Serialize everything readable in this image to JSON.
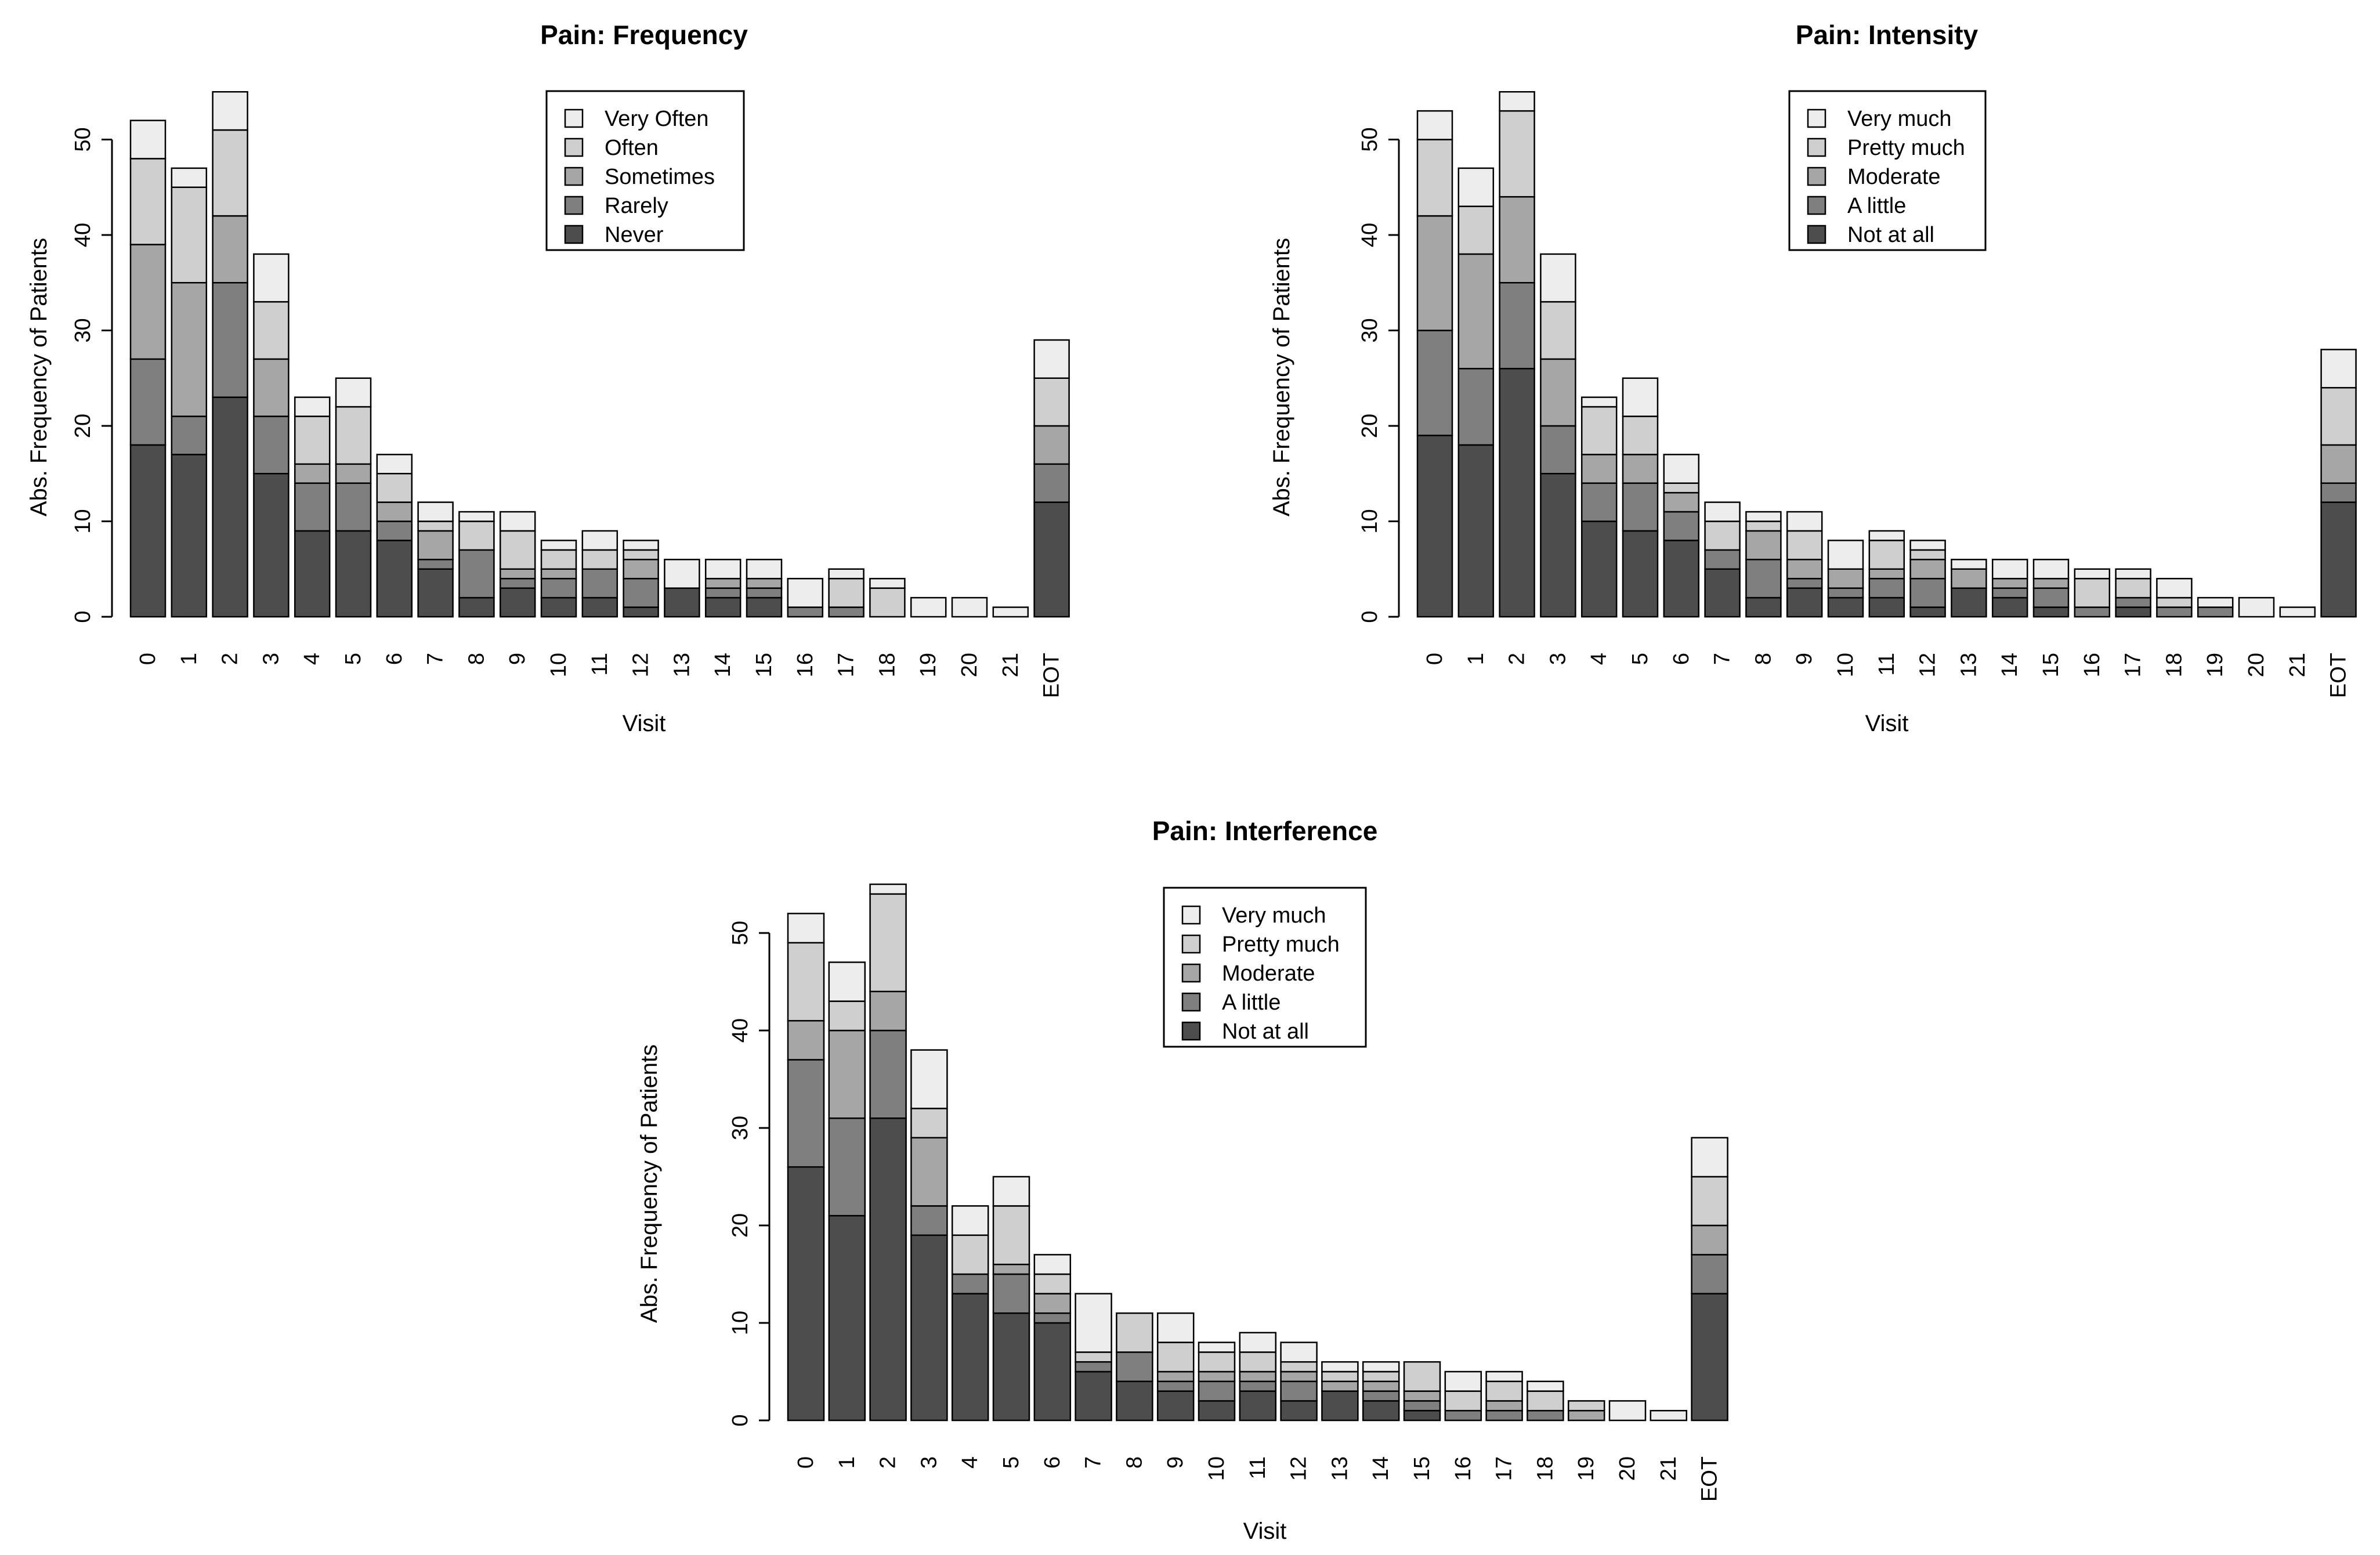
{
  "colors": {
    "level_1": "#4d4d4d",
    "level_2": "#7f7f7f",
    "level_3": "#a6a6a6",
    "level_4": "#cfcfcf",
    "level_5": "#ededed",
    "stroke": "#000000"
  },
  "chart_data": [
    {
      "type": "bar",
      "stacked": true,
      "title": "Pain: Frequency",
      "xlabel": "Visit",
      "ylabel": "Abs. Frequency of Patients",
      "ylim": [
        0,
        55
      ],
      "yticks": [
        0,
        10,
        20,
        30,
        40,
        50
      ],
      "legend_position": "top-center",
      "categories": [
        "0",
        "1",
        "2",
        "3",
        "4",
        "5",
        "6",
        "7",
        "8",
        "9",
        "10",
        "11",
        "12",
        "13",
        "14",
        "15",
        "16",
        "17",
        "18",
        "19",
        "20",
        "21",
        "EOT"
      ],
      "series": [
        {
          "name": "Never",
          "values": [
            18,
            17,
            23,
            15,
            9,
            9,
            8,
            5,
            2,
            3,
            2,
            2,
            1,
            3,
            2,
            2,
            0,
            0,
            0,
            0,
            0,
            0,
            12
          ]
        },
        {
          "name": "Rarely",
          "values": [
            9,
            4,
            12,
            6,
            5,
            5,
            2,
            1,
            5,
            1,
            2,
            3,
            3,
            0,
            1,
            1,
            1,
            1,
            0,
            0,
            0,
            0,
            4
          ]
        },
        {
          "name": "Sometimes",
          "values": [
            12,
            14,
            7,
            6,
            2,
            2,
            2,
            3,
            0,
            1,
            1,
            0,
            2,
            0,
            1,
            1,
            0,
            0,
            0,
            0,
            0,
            0,
            4
          ]
        },
        {
          "name": "Often",
          "values": [
            9,
            10,
            9,
            6,
            5,
            6,
            3,
            1,
            3,
            4,
            2,
            2,
            1,
            0,
            0,
            0,
            0,
            3,
            3,
            0,
            0,
            0,
            5
          ]
        },
        {
          "name": "Very Often",
          "values": [
            4,
            2,
            4,
            5,
            2,
            3,
            2,
            2,
            1,
            2,
            1,
            2,
            1,
            3,
            2,
            2,
            3,
            1,
            1,
            2,
            2,
            1,
            4
          ]
        }
      ]
    },
    {
      "type": "bar",
      "stacked": true,
      "title": "Pain: Intensity",
      "xlabel": "Visit",
      "ylabel": "Abs. Frequency of Patients",
      "ylim": [
        0,
        55
      ],
      "yticks": [
        0,
        10,
        20,
        30,
        40,
        50
      ],
      "legend_position": "top-center",
      "categories": [
        "0",
        "1",
        "2",
        "3",
        "4",
        "5",
        "6",
        "7",
        "8",
        "9",
        "10",
        "11",
        "12",
        "13",
        "14",
        "15",
        "16",
        "17",
        "18",
        "19",
        "20",
        "21",
        "EOT"
      ],
      "series": [
        {
          "name": "Not at all",
          "values": [
            19,
            18,
            26,
            15,
            10,
            9,
            8,
            5,
            2,
            3,
            2,
            2,
            1,
            3,
            2,
            1,
            0,
            1,
            0,
            0,
            0,
            0,
            12
          ]
        },
        {
          "name": "A little",
          "values": [
            11,
            8,
            9,
            5,
            4,
            5,
            3,
            2,
            4,
            1,
            1,
            2,
            3,
            0,
            1,
            2,
            1,
            1,
            1,
            1,
            0,
            0,
            2
          ]
        },
        {
          "name": "Moderate",
          "values": [
            12,
            12,
            9,
            7,
            3,
            3,
            2,
            0,
            3,
            2,
            2,
            1,
            2,
            2,
            1,
            1,
            0,
            0,
            0,
            0,
            0,
            0,
            4
          ]
        },
        {
          "name": "Pretty much",
          "values": [
            8,
            5,
            9,
            6,
            5,
            4,
            1,
            3,
            1,
            3,
            0,
            3,
            1,
            0,
            0,
            0,
            3,
            2,
            1,
            0,
            0,
            0,
            6
          ]
        },
        {
          "name": "Very much",
          "values": [
            3,
            4,
            2,
            5,
            1,
            4,
            3,
            2,
            1,
            2,
            3,
            1,
            1,
            1,
            2,
            2,
            1,
            1,
            2,
            1,
            2,
            1,
            4
          ]
        }
      ]
    },
    {
      "type": "bar",
      "stacked": true,
      "title": "Pain: Interference",
      "xlabel": "Visit",
      "ylabel": "Abs. Frequency of Patients",
      "ylim": [
        0,
        55
      ],
      "yticks": [
        0,
        10,
        20,
        30,
        40,
        50
      ],
      "legend_position": "top-center",
      "categories": [
        "0",
        "1",
        "2",
        "3",
        "4",
        "5",
        "6",
        "7",
        "8",
        "9",
        "10",
        "11",
        "12",
        "13",
        "14",
        "15",
        "16",
        "17",
        "18",
        "19",
        "20",
        "21",
        "EOT"
      ],
      "series": [
        {
          "name": "Not at all",
          "values": [
            26,
            21,
            31,
            19,
            13,
            11,
            10,
            5,
            4,
            3,
            2,
            3,
            2,
            3,
            2,
            1,
            0,
            0,
            0,
            0,
            0,
            0,
            13
          ]
        },
        {
          "name": "A little",
          "values": [
            11,
            10,
            9,
            3,
            2,
            4,
            1,
            1,
            3,
            1,
            2,
            1,
            2,
            0,
            1,
            1,
            1,
            1,
            1,
            0,
            0,
            0,
            4
          ]
        },
        {
          "name": "Moderate",
          "values": [
            4,
            9,
            4,
            7,
            0,
            1,
            2,
            0,
            0,
            1,
            1,
            1,
            1,
            1,
            1,
            1,
            0,
            1,
            0,
            1,
            0,
            0,
            3
          ]
        },
        {
          "name": "Pretty much",
          "values": [
            8,
            3,
            10,
            3,
            4,
            6,
            2,
            1,
            4,
            3,
            2,
            2,
            1,
            1,
            1,
            3,
            2,
            2,
            2,
            1,
            0,
            0,
            5
          ]
        },
        {
          "name": "Very much",
          "values": [
            3,
            4,
            1,
            6,
            3,
            3,
            2,
            6,
            0,
            3,
            1,
            2,
            2,
            1,
            1,
            0,
            2,
            1,
            1,
            0,
            2,
            1,
            4
          ]
        }
      ]
    }
  ]
}
